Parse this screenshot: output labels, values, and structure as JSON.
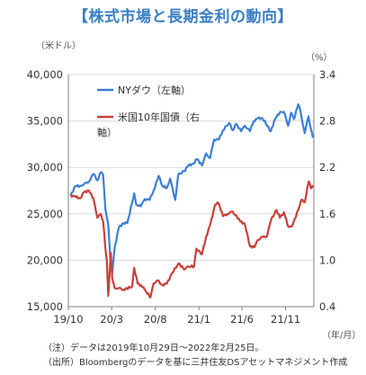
{
  "title": "【株式市場と長期金利の動向】",
  "units": {
    "left": "（米ドル）",
    "right": "（%）",
    "x": "（年/月）"
  },
  "notes": [
    "（注）データは2019年10月29日～2022年2月25日。",
    "（出所）Bloombergのデータを基に三井住友DSアセットマネジメント作成"
  ],
  "chart_data": {
    "type": "line",
    "x_ticks": [
      "19/10",
      "20/3",
      "20/8",
      "21/1",
      "21/6",
      "21/11"
    ],
    "y_left": {
      "min": 15000,
      "max": 40000,
      "ticks": [
        "40,000",
        "35,000",
        "30,000",
        "25,000",
        "20,000",
        "15,000"
      ]
    },
    "y_right": {
      "min": 0.4,
      "max": 3.4,
      "ticks": [
        "3.4",
        "2.8",
        "2.2",
        "1.6",
        "1.0",
        "0.4"
      ]
    },
    "legend": [
      {
        "label": "NYダウ（左軸）",
        "color": "#3d7fd6"
      },
      {
        "label": "米国10年国債（右",
        "label2": "軸）",
        "color": "#c8403a"
      }
    ],
    "series": [
      {
        "name": "NYダウ（左軸）",
        "axis": "left",
        "color": "#3d7fd6",
        "x": [
          "2019-10-29",
          "2019-11-15",
          "2019-12-01",
          "2019-12-15",
          "2020-01-01",
          "2020-01-17",
          "2020-01-31",
          "2020-02-12",
          "2020-02-20",
          "2020-02-28",
          "2020-03-09",
          "2020-03-16",
          "2020-03-23",
          "2020-04-01",
          "2020-04-15",
          "2020-05-01",
          "2020-05-15",
          "2020-06-08",
          "2020-06-15",
          "2020-07-01",
          "2020-07-15",
          "2020-08-01",
          "2020-08-15",
          "2020-09-02",
          "2020-09-15",
          "2020-10-01",
          "2020-10-12",
          "2020-10-30",
          "2020-11-09",
          "2020-11-30",
          "2020-12-15",
          "2021-01-01",
          "2021-01-15",
          "2021-02-01",
          "2021-02-15",
          "2021-03-01",
          "2021-03-15",
          "2021-04-01",
          "2021-04-15",
          "2021-05-07",
          "2021-05-20",
          "2021-06-01",
          "2021-06-18",
          "2021-07-01",
          "2021-07-19",
          "2021-08-01",
          "2021-08-16",
          "2021-09-01",
          "2021-09-30",
          "2021-10-15",
          "2021-11-02",
          "2021-11-15",
          "2021-11-30",
          "2021-12-10",
          "2021-12-20",
          "2022-01-04",
          "2022-01-12",
          "2022-01-20",
          "2022-01-27",
          "2022-02-09",
          "2022-02-18",
          "2022-02-25"
        ],
        "values": [
          27000,
          28000,
          28000,
          28200,
          28500,
          29300,
          28600,
          29500,
          29200,
          25500,
          23800,
          20300,
          18600,
          21500,
          23500,
          24000,
          24000,
          27200,
          26000,
          25800,
          26600,
          26500,
          27500,
          29100,
          28000,
          27800,
          28800,
          26500,
          29200,
          29600,
          30200,
          30400,
          30900,
          30200,
          31500,
          31000,
          33000,
          33000,
          34000,
          34800,
          34000,
          34700,
          33900,
          34500,
          33900,
          35000,
          35300,
          35300,
          33900,
          35200,
          36000,
          36000,
          34500,
          35900,
          35200,
          36800,
          36100,
          34700,
          33700,
          35500,
          34100,
          33200
        ]
      },
      {
        "name": "米国10年国債（右軸）",
        "axis": "right",
        "color": "#c8403a",
        "x": [
          "2019-10-29",
          "2019-11-15",
          "2019-12-01",
          "2019-12-15",
          "2020-01-01",
          "2020-01-17",
          "2020-01-31",
          "2020-02-12",
          "2020-02-20",
          "2020-02-28",
          "2020-03-04",
          "2020-03-09",
          "2020-03-18",
          "2020-03-23",
          "2020-04-01",
          "2020-04-15",
          "2020-05-01",
          "2020-06-01",
          "2020-06-08",
          "2020-06-20",
          "2020-07-01",
          "2020-07-15",
          "2020-08-04",
          "2020-08-15",
          "2020-08-28",
          "2020-09-15",
          "2020-10-01",
          "2020-10-20",
          "2020-11-11",
          "2020-12-01",
          "2020-12-15",
          "2021-01-04",
          "2021-01-12",
          "2021-02-01",
          "2021-02-15",
          "2021-03-01",
          "2021-03-19",
          "2021-03-31",
          "2021-04-15",
          "2021-05-01",
          "2021-05-15",
          "2021-06-01",
          "2021-06-15",
          "2021-07-01",
          "2021-07-19",
          "2021-08-04",
          "2021-08-15",
          "2021-09-01",
          "2021-09-15",
          "2021-10-01",
          "2021-10-20",
          "2021-11-01",
          "2021-11-15",
          "2021-12-01",
          "2021-12-15",
          "2022-01-04",
          "2022-01-15",
          "2022-01-27",
          "2022-02-10",
          "2022-02-18",
          "2022-02-25"
        ],
        "values": [
          1.84,
          1.82,
          1.8,
          1.88,
          1.9,
          1.8,
          1.55,
          1.6,
          1.5,
          1.15,
          1.0,
          0.54,
          1.1,
          0.76,
          0.64,
          0.64,
          0.62,
          0.66,
          0.9,
          0.7,
          0.68,
          0.62,
          0.52,
          0.7,
          0.74,
          0.68,
          0.7,
          0.84,
          0.96,
          0.88,
          0.92,
          0.92,
          1.15,
          1.08,
          1.3,
          1.45,
          1.72,
          1.74,
          1.57,
          1.6,
          1.63,
          1.58,
          1.5,
          1.47,
          1.18,
          1.17,
          1.26,
          1.3,
          1.3,
          1.52,
          1.65,
          1.55,
          1.62,
          1.43,
          1.45,
          1.65,
          1.78,
          1.75,
          2.02,
          1.93,
          1.97
        ]
      }
    ]
  }
}
